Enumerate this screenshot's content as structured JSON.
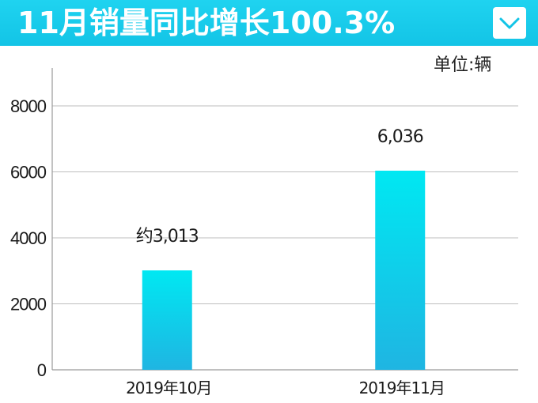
{
  "header": {
    "title": "11月销量同比增长100.3%",
    "logo_icon": "chevron-down-icon"
  },
  "unit_label": "单位:辆",
  "colors": {
    "banner": "#13c4e6",
    "bar_top": "#00e8f2",
    "bar_bottom": "#1fb5e2",
    "grid": "#bdbdbd"
  },
  "chart_data": {
    "type": "bar",
    "categories": [
      "2019年10月",
      "2019年11月"
    ],
    "values": [
      3013,
      6036
    ],
    "data_labels": [
      "约3,013",
      "6,036"
    ],
    "yticks": [
      0,
      2000,
      4000,
      6000,
      8000
    ],
    "ytick_labels": [
      "0",
      "2000",
      "4000",
      "6000",
      "8000"
    ],
    "ylim": [
      0,
      8000
    ],
    "grid": true,
    "legend": "none"
  }
}
